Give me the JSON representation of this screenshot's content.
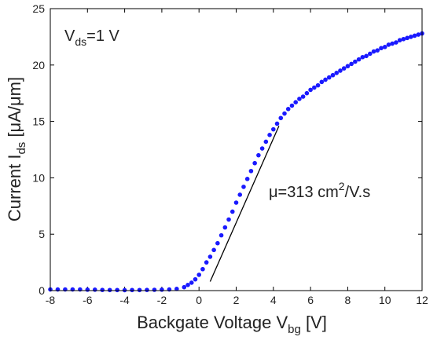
{
  "chart_data": {
    "type": "scatter",
    "xlabel": {
      "main": "Backgate Voltage V",
      "sub": "bg",
      "unit": " [V]"
    },
    "ylabel": {
      "main": "Current I",
      "sub": "ds",
      "unit": " [μA/μm]"
    },
    "xlim": [
      -8,
      12
    ],
    "ylim": [
      0,
      25
    ],
    "x_ticks": [
      -8,
      -6,
      -4,
      -2,
      0,
      2,
      4,
      6,
      8,
      10,
      12
    ],
    "y_ticks": [
      0,
      5,
      10,
      15,
      20,
      25
    ],
    "grid": false,
    "marker_color": "#1a1aff",
    "fit_line_color": "#000000",
    "annotations": {
      "vds": {
        "main": "V",
        "sub": "ds",
        "rest": "=1 V"
      },
      "mobility": {
        "main": "μ=313 cm",
        "sup": "2",
        "rest": "/V.s"
      }
    },
    "fit_line": {
      "x": [
        0.6,
        4.3
      ],
      "y": [
        0.8,
        14.6
      ]
    },
    "series": [
      {
        "x": [
          -8.0,
          -7.6,
          -7.2,
          -6.8,
          -6.4,
          -6.0,
          -5.6,
          -5.2,
          -4.8,
          -4.4,
          -4.0,
          -3.6,
          -3.2,
          -2.8,
          -2.4,
          -2.0,
          -1.6,
          -1.2,
          -0.8,
          -0.6,
          -0.4,
          -0.2,
          0.0,
          0.2,
          0.4,
          0.6,
          0.8,
          1.0,
          1.2,
          1.4,
          1.6,
          1.8,
          2.0,
          2.2,
          2.4,
          2.6,
          2.8,
          3.0,
          3.2,
          3.4,
          3.6,
          3.8,
          4.0,
          4.2,
          4.4,
          4.6,
          4.8,
          5.0,
          5.2,
          5.4,
          5.6,
          5.8,
          6.0,
          6.2,
          6.4,
          6.6,
          6.8,
          7.0,
          7.2,
          7.4,
          7.6,
          7.8,
          8.0,
          8.2,
          8.4,
          8.6,
          8.8,
          9.0,
          9.2,
          9.4,
          9.6,
          9.8,
          10.0,
          10.2,
          10.4,
          10.6,
          10.8,
          11.0,
          11.2,
          11.4,
          11.6,
          11.8,
          12.0
        ],
        "y": [
          0.1,
          0.1,
          0.1,
          0.1,
          0.1,
          0.08,
          0.08,
          0.06,
          0.05,
          0.05,
          0.04,
          0.05,
          0.05,
          0.06,
          0.07,
          0.08,
          0.1,
          0.15,
          0.3,
          0.5,
          0.7,
          1.0,
          1.4,
          1.9,
          2.5,
          3.0,
          3.6,
          4.2,
          4.9,
          5.6,
          6.3,
          7.0,
          7.8,
          8.5,
          9.2,
          9.9,
          10.6,
          11.3,
          12.0,
          12.6,
          13.2,
          13.8,
          14.3,
          14.8,
          15.3,
          15.7,
          16.1,
          16.4,
          16.7,
          17.0,
          17.2,
          17.5,
          17.8,
          18.0,
          18.2,
          18.5,
          18.7,
          18.9,
          19.1,
          19.3,
          19.5,
          19.7,
          19.9,
          20.1,
          20.3,
          20.5,
          20.7,
          20.8,
          21.0,
          21.2,
          21.3,
          21.5,
          21.6,
          21.8,
          21.9,
          22.0,
          22.2,
          22.3,
          22.4,
          22.5,
          22.6,
          22.7,
          22.8
        ]
      }
    ]
  }
}
